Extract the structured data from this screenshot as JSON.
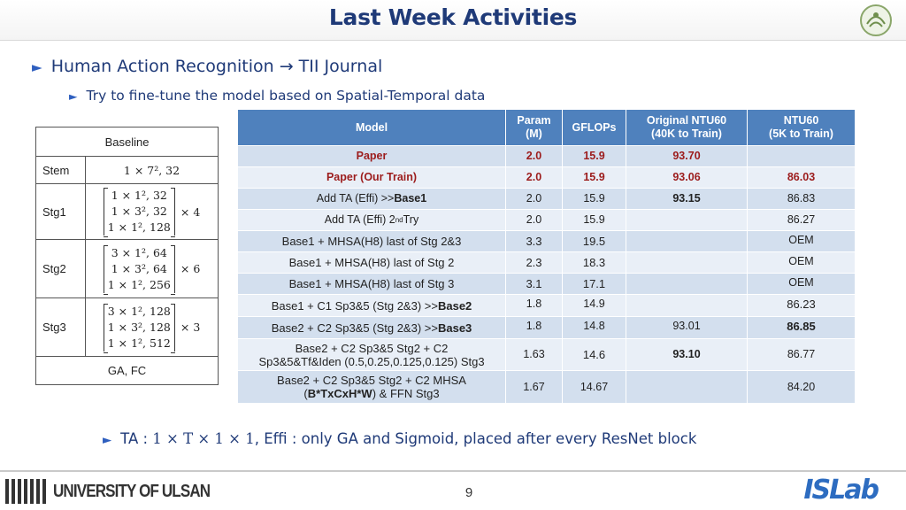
{
  "title": "Last Week Activities",
  "bullets": {
    "level1": "Human Action Recognition → TII Journal",
    "level2": "Try to fine-tune the model based on Spatial-Temporal data",
    "ta_prefix": "TA : ",
    "ta_math": "1 × T × 1 × 1",
    "ta_suffix": ", Effi : only GA and Sigmoid, placed after every ResNet block"
  },
  "baseline": {
    "header": "Baseline",
    "stem_label": "Stem",
    "stem_value": "1 × 7², 32",
    "stg1_label": "Stg1",
    "stg1_rows": [
      "1 × 1², 32",
      "1 × 3², 32",
      "1 × 1², 128"
    ],
    "stg1_mult": "× 4",
    "stg2_label": "Stg2",
    "stg2_rows": [
      "3 × 1², 64",
      "1 × 3², 64",
      "1 × 1², 256"
    ],
    "stg2_mult": "× 6",
    "stg3_label": "Stg3",
    "stg3_rows": [
      "3 × 1², 128",
      "1 × 3², 128",
      "1 × 1², 512"
    ],
    "stg3_mult": "× 3",
    "footer": "GA, FC"
  },
  "table": {
    "headers": {
      "model": "Model",
      "param_line1": "Param",
      "param_line2": "(M)",
      "gflops": "GFLOPs",
      "ntu40_line1": "Original NTU60",
      "ntu40_line2": "(40K to Train)",
      "ntu5_line1": "NTU60",
      "ntu5_line2": "(5K to Train)"
    },
    "rows": [
      {
        "model": "Paper",
        "param": "2.0",
        "gflops": "15.9",
        "ntu40": "93.70",
        "ntu5": ""
      },
      {
        "model": "Paper (Our Train)",
        "param": "2.0",
        "gflops": "15.9",
        "ntu40": "93.06",
        "ntu5": "86.03"
      },
      {
        "model_prefix": "Add TA (Effi) >> ",
        "model_bold": "Base1",
        "param": "2.0",
        "gflops": "15.9",
        "ntu40": "93.15",
        "ntu5": "86.83"
      },
      {
        "model_prefix": "Add TA (Effi) 2",
        "model_sup": "nd",
        "model_suffix": " Try",
        "param": "2.0",
        "gflops": "15.9",
        "ntu40": "",
        "ntu5": "86.27"
      },
      {
        "model": "Base1 + MHSA(H8) last of Stg 2&3",
        "param": "3.3",
        "gflops": "19.5",
        "ntu40": "",
        "ntu5": "OEM"
      },
      {
        "model": "Base1 + MHSA(H8) last of Stg 2",
        "param": "2.3",
        "gflops": "18.3",
        "ntu40": "",
        "ntu5": "OEM"
      },
      {
        "model": "Base1 + MHSA(H8) last of Stg 3",
        "param": "3.1",
        "gflops": "17.1",
        "ntu40": "",
        "ntu5": "OEM"
      },
      {
        "model_prefix": "Base1 + C1 Sp3&5 (Stg 2&3) >> ",
        "model_bold": "Base2",
        "param": "1.8",
        "gflops": "14.9",
        "ntu40": "",
        "ntu5": "86.23"
      },
      {
        "model_prefix": "Base2 + C2 Sp3&5 (Stg 2&3) >> ",
        "model_bold": "Base3",
        "param": "1.8",
        "gflops": "14.8",
        "ntu40": "93.01",
        "ntu5": "86.85"
      },
      {
        "model_line1": "Base2 + C2 Sp3&5 Stg2 + C2",
        "model_line2": "Sp3&5&Tf&Iden (0.5,0.25,0.125,0.125) Stg3",
        "param": "1.63",
        "gflops": "14.6",
        "ntu40": "93.10",
        "ntu5": "86.77"
      },
      {
        "model_line1": "Base2 + C2 Sp3&5 Stg2 + C2 MHSA",
        "model_line2_pre": "(",
        "model_line2_bold": "B*TxCxH*W",
        "model_line2_post": ") & FFN Stg3",
        "param": "1.67",
        "gflops": "14.67",
        "ntu40": "",
        "ntu5": "84.20"
      }
    ]
  },
  "footer": {
    "university": "UNIVERSITY OF ULSAN",
    "page_number": "9",
    "lab": "ISLab"
  },
  "colors": {
    "title": "#1f3a78",
    "header_fill": "#4f81bd",
    "row_dark": "#d3dfee",
    "row_light": "#e9eff7",
    "highlight_red": "#9c1c1c",
    "lab_blue": "#2d6cc0"
  }
}
